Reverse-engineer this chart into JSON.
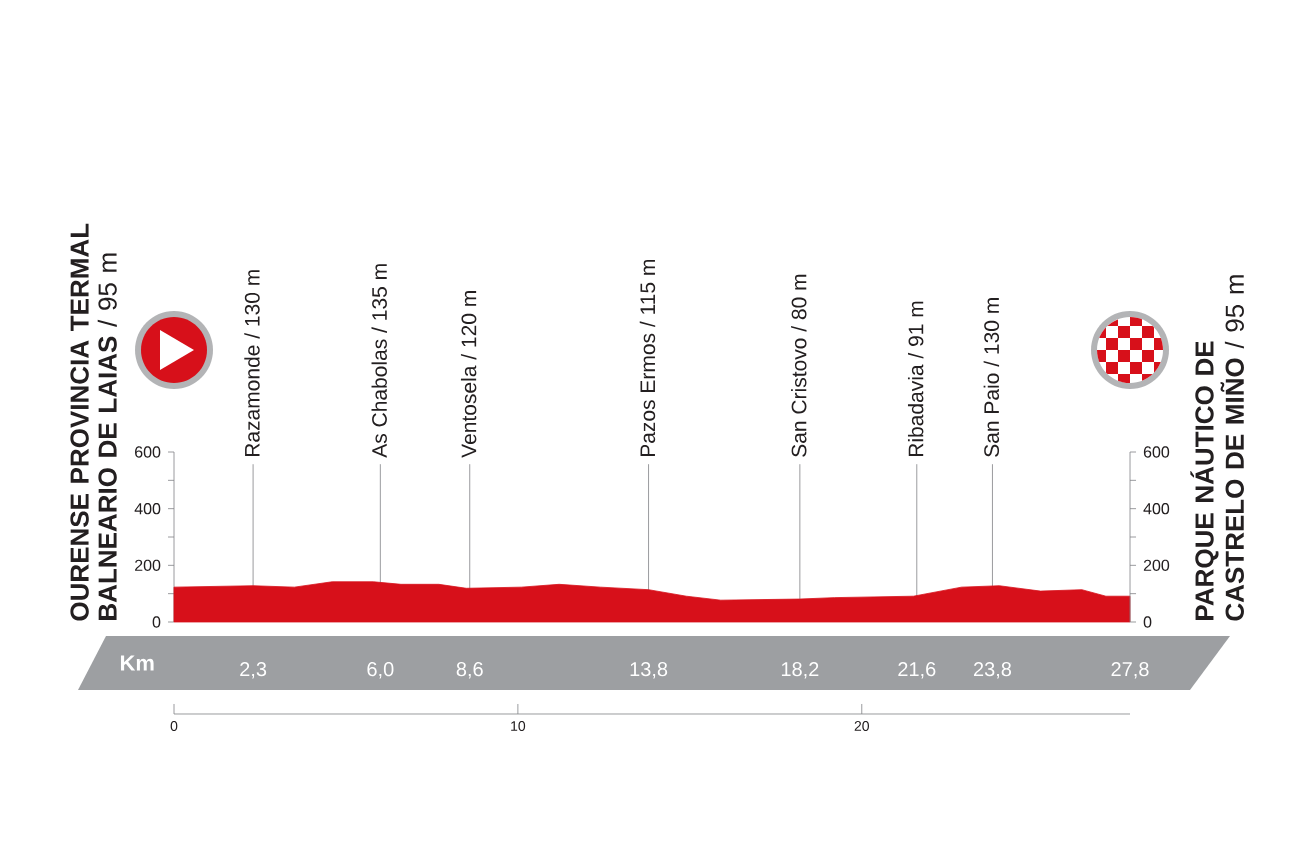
{
  "chart_data": {
    "type": "area",
    "color": "#d7101a",
    "xlabel": "Km",
    "x": [
      0,
      2.3,
      3.5,
      4.6,
      5.8,
      6.6,
      7.7,
      8.5,
      10.1,
      11.2,
      12.4,
      13.8,
      14.9,
      15.9,
      18.2,
      19.2,
      21.5,
      22.9,
      24.0,
      25.2,
      26.4,
      27.1,
      27.8
    ],
    "values": [
      123,
      128,
      123,
      142,
      142,
      133,
      133,
      119,
      123,
      133,
      123,
      114,
      91,
      77,
      81,
      86,
      91,
      123,
      128,
      109,
      114,
      91,
      91
    ],
    "xlim": [
      0,
      27.8
    ],
    "xticks": [
      {
        "value": 2.3,
        "label": "2,3"
      },
      {
        "value": 6.0,
        "label": "6,0"
      },
      {
        "value": 8.6,
        "label": "8,6"
      },
      {
        "value": 13.8,
        "label": "13,8"
      },
      {
        "value": 18.2,
        "label": "18,2"
      },
      {
        "value": 21.6,
        "label": "21,6"
      },
      {
        "value": 23.8,
        "label": "23,8"
      },
      {
        "value": 27.8,
        "label": "27,8"
      }
    ],
    "x2lim": [
      0,
      27.8
    ],
    "x2ticks": [
      0,
      10,
      20
    ],
    "ylim": [
      0,
      600
    ],
    "yticks": [
      0,
      {
        "value": 100,
        "label": null
      },
      200,
      {
        "value": 300,
        "label": null
      },
      400,
      {
        "value": 500,
        "label": null
      },
      600
    ],
    "y2lim": [
      0,
      600
    ],
    "y2ticks": [
      0,
      {
        "value": 100,
        "label": null
      },
      200,
      {
        "value": 300,
        "label": null
      },
      400,
      {
        "value": 500,
        "label": null
      },
      600
    ],
    "ref_lines": [
      {
        "axis": "x",
        "value": 2.3,
        "label": "Razamonde / 130 m"
      },
      {
        "axis": "x",
        "value": 6.0,
        "label": "As Chabolas / 135 m"
      },
      {
        "axis": "x",
        "value": 8.6,
        "label": "Ventosela / 120 m"
      },
      {
        "axis": "x",
        "value": 13.8,
        "label": "Pazos Ermos / 115 m"
      },
      {
        "axis": "x",
        "value": 18.2,
        "label": "San Cristovo / 80 m"
      },
      {
        "axis": "x",
        "value": 21.6,
        "label": "Ribadavia / 91 m"
      },
      {
        "axis": "x",
        "value": 23.8,
        "label": "San Paio / 130 m"
      }
    ],
    "annotations": [
      "**OURENSE PROVINCIA TERMAL BALNEARIO DE LAIAS** / 95 m",
      "**PARQUE NÁUTICO DE CASTRELO DE MIÑO** / 95 m"
    ]
  }
}
